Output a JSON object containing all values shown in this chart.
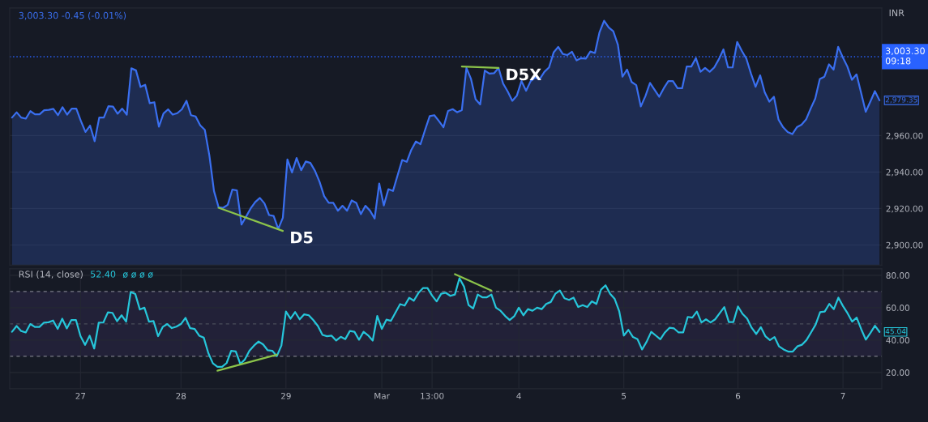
{
  "chart_data": [
    {
      "type": "area",
      "ylabel": "INR",
      "annotations": [
        "3,003.30 -0.45 (-0.01%)"
      ],
      "categories": [
        null,
        null,
        null,
        null,
        null,
        null,
        null,
        null,
        null,
        null,
        null,
        null,
        null,
        null,
        null,
        null,
        null,
        null,
        null,
        null,
        null,
        null,
        null,
        null,
        null,
        null,
        null,
        null,
        null,
        null,
        null,
        null,
        null,
        null,
        null,
        null,
        null,
        null,
        null,
        null,
        null,
        null,
        null,
        null,
        null,
        null,
        null,
        null,
        null,
        null,
        null,
        null,
        null,
        null,
        null,
        null,
        null,
        null,
        null,
        null,
        null,
        null,
        null,
        null,
        null,
        null,
        null,
        null,
        null,
        null,
        null,
        null,
        null,
        null,
        null,
        null,
        null,
        null,
        null,
        null,
        null,
        null,
        null,
        null,
        null,
        null,
        null,
        null,
        null,
        null,
        null,
        null,
        null,
        null,
        null,
        null,
        null,
        null,
        null,
        null,
        null,
        null,
        null,
        null,
        null,
        null,
        null,
        null,
        null,
        null,
        null,
        null,
        null,
        null,
        null,
        null,
        null,
        null,
        null,
        null,
        null,
        null,
        null,
        null,
        null,
        null,
        null,
        null,
        null,
        null,
        null,
        null,
        null,
        null,
        null,
        null,
        null,
        null,
        null,
        null,
        null,
        null,
        null,
        null,
        null,
        null,
        null,
        null,
        null,
        null,
        null,
        null,
        null,
        null,
        null,
        null,
        null,
        null,
        null,
        null,
        null,
        null,
        null,
        null,
        null,
        null,
        null,
        null,
        null,
        null,
        null,
        null,
        null,
        null,
        null,
        null,
        null,
        null,
        null,
        null,
        null,
        null,
        null,
        null,
        null,
        null,
        null,
        null,
        null,
        null
      ],
      "series": [
        {
          "color": "#3a6ff0",
          "values": [
            2969.9,
            2972.8,
            2969.9,
            2969.3,
            2973.4,
            2971.7,
            2971.7,
            2973.9,
            2974.1,
            2974.7,
            2971.2,
            2975.6,
            2971.5,
            2974.8,
            2974.8,
            2968.0,
            2962.0,
            2965.5,
            2956.9,
            2969.9,
            2969.9,
            2976.1,
            2975.9,
            2972.0,
            2974.8,
            2971.5,
            2996.9,
            2995.8,
            2986.7,
            2987.9,
            2977.8,
            2978.3,
            2964.9,
            2972.1,
            2974.4,
            2971.5,
            2972.3,
            2974.4,
            2979.1,
            2971.2,
            2970.5,
            2965.6,
            2963.2,
            2949.0,
            2929.6,
            2920.7,
            2920.4,
            2922.0,
            2930.4,
            2929.9,
            2911.2,
            2915.6,
            2920.1,
            2923.6,
            2925.8,
            2922.8,
            2916.4,
            2915.9,
            2908.8,
            2914.9,
            2946.9,
            2939.8,
            2947.7,
            2941.0,
            2945.8,
            2945.0,
            2940.7,
            2934.7,
            2926.8,
            2923.1,
            2923.1,
            2918.8,
            2921.5,
            2918.8,
            2924.4,
            2923.1,
            2916.9,
            2921.5,
            2918.8,
            2914.5,
            2933.7,
            2921.7,
            2930.6,
            2929.6,
            2938.2,
            2946.6,
            2945.6,
            2952.2,
            2956.8,
            2955.3,
            2963.2,
            2970.7,
            2971.2,
            2968.0,
            2964.6,
            2973.5,
            2974.5,
            2972.8,
            2974.0,
            2997.1,
            2991.1,
            2980.0,
            2977.1,
            2995.7,
            2994.0,
            2994.2,
            2997.1,
            2988.5,
            2984.2,
            2979.1,
            2982.0,
            2989.9,
            2984.6,
            2989.9,
            2991.9,
            2991.1,
            2995.0,
            2997.4,
            3005.6,
            3008.7,
            3004.8,
            3004.2,
            3006.0,
            3001.3,
            3002.5,
            3002.2,
            3006.1,
            3005.3,
            3016.7,
            3023.0,
            3019.3,
            3017.2,
            3009.9,
            2992.3,
            2996.2,
            2989.4,
            2987.7,
            2976.0,
            2981.7,
            2988.9,
            2985.1,
            2981.3,
            2986.0,
            2989.9,
            2989.9,
            2986.0,
            2986.0,
            2997.9,
            2997.9,
            3002.5,
            2995.0,
            2997.1,
            2995.0,
            2997.4,
            3001.9,
            3007.3,
            2997.4,
            2997.4,
            3011.4,
            3006.5,
            3002.2,
            2994.0,
            2986.8,
            2993.1,
            2983.7,
            2978.6,
            2981.3,
            2968.8,
            2964.6,
            2962.0,
            2960.8,
            2964.6,
            2966.0,
            2968.8,
            2974.8,
            2980.3,
            2991.1,
            2992.3,
            2999.1,
            2996.2,
            3008.7,
            3003.0,
            2997.9,
            2990.6,
            2993.6,
            2983.4,
            2973.1,
            2978.6,
            2984.4,
            2979.35
          ],
          "value_labels": [
            null,
            null,
            null,
            null,
            null,
            null,
            null,
            null,
            null,
            null,
            null,
            null,
            null,
            null,
            null,
            null,
            null,
            null,
            null,
            null,
            null,
            null,
            null,
            null,
            null,
            null,
            null,
            null,
            null,
            null,
            null,
            null,
            null,
            null,
            null,
            null,
            null,
            null,
            null,
            null,
            null,
            null,
            null,
            null,
            null,
            null,
            null,
            null,
            null,
            null,
            null,
            null,
            null,
            null,
            null,
            null,
            null,
            null,
            null,
            null,
            null,
            null,
            null,
            null,
            null,
            null,
            null,
            null,
            null,
            null,
            null,
            null,
            null,
            null,
            null,
            null,
            null,
            null,
            null,
            null,
            null,
            null,
            null,
            null,
            null,
            null,
            null,
            null,
            null,
            null,
            null,
            null,
            null,
            null,
            null,
            null,
            null,
            null,
            null,
            null,
            null,
            null,
            null,
            null,
            null,
            null,
            null,
            null,
            null,
            null,
            null,
            null,
            null,
            null,
            null,
            null,
            null,
            null,
            null,
            null,
            null,
            null,
            null,
            null,
            null,
            null,
            null,
            null,
            null,
            null,
            null,
            null,
            null,
            null,
            null,
            null,
            null,
            null,
            null,
            null,
            null,
            null,
            null,
            null,
            null,
            null,
            null,
            null,
            null,
            null,
            null,
            null,
            null,
            null,
            null,
            null,
            null,
            null,
            null,
            null,
            null,
            null,
            null,
            null,
            null,
            null,
            null,
            null,
            null,
            null,
            null,
            null,
            null,
            null,
            null,
            null,
            null,
            null,
            null,
            null,
            null,
            null,
            null,
            null,
            null,
            null,
            null,
            null,
            null,
            "2,979.35"
          ]
        },
        {
          "type": "line",
          "name": "D5",
          "color": "#8bc34a",
          "values": [
            null,
            null,
            null,
            null,
            null,
            null,
            null,
            null,
            null,
            null,
            null,
            null,
            null,
            null,
            null,
            null,
            null,
            null,
            null,
            null,
            null,
            null,
            null,
            null,
            null,
            null,
            null,
            null,
            null,
            null,
            null,
            null,
            null,
            null,
            null,
            null,
            null,
            null,
            null,
            null,
            null,
            null,
            null,
            null,
            null,
            2920.4,
            null,
            null,
            null,
            null,
            null,
            null,
            null,
            null,
            null,
            null,
            null,
            null,
            null,
            2907.7,
            null,
            null,
            null,
            null,
            null,
            null,
            null,
            null,
            null,
            null,
            null,
            null,
            null,
            null,
            null,
            null,
            null,
            null,
            null,
            null,
            null,
            null,
            null,
            null,
            null,
            null,
            null,
            null,
            null,
            null,
            null,
            null,
            null,
            null,
            null,
            null,
            null,
            null,
            null,
            null,
            null,
            null,
            null,
            null,
            null,
            null,
            null,
            null,
            null,
            null,
            null,
            null,
            null,
            null,
            null,
            null,
            null,
            null,
            null,
            null,
            null,
            null,
            null,
            null,
            null,
            null,
            null,
            null,
            null,
            null,
            null,
            null,
            null,
            null,
            null,
            null,
            null,
            null,
            null,
            null,
            null,
            null,
            null,
            null,
            null,
            null,
            null,
            null,
            null,
            null,
            null,
            null,
            null,
            null,
            null,
            null,
            null,
            null,
            null,
            null,
            null,
            null,
            null,
            null,
            null,
            null,
            null,
            null,
            null,
            null,
            null,
            null,
            null,
            null,
            null,
            null,
            null,
            null,
            null,
            null,
            null,
            null,
            null,
            null,
            null,
            null,
            null,
            null,
            null,
            null
          ]
        },
        {
          "type": "line",
          "name": "D5X",
          "color": "#8bc34a",
          "values": [
            null,
            null,
            null,
            null,
            null,
            null,
            null,
            null,
            null,
            null,
            null,
            null,
            null,
            null,
            null,
            null,
            null,
            null,
            null,
            null,
            null,
            null,
            null,
            null,
            null,
            null,
            null,
            null,
            null,
            null,
            null,
            null,
            null,
            null,
            null,
            null,
            null,
            null,
            null,
            null,
            null,
            null,
            null,
            null,
            null,
            null,
            null,
            null,
            null,
            null,
            null,
            null,
            null,
            null,
            null,
            null,
            null,
            null,
            null,
            null,
            null,
            null,
            null,
            null,
            null,
            null,
            null,
            null,
            null,
            null,
            null,
            null,
            null,
            null,
            null,
            null,
            null,
            null,
            null,
            null,
            null,
            null,
            null,
            null,
            null,
            null,
            null,
            null,
            null,
            null,
            null,
            null,
            null,
            null,
            null,
            null,
            null,
            null,
            2997.9,
            null,
            null,
            null,
            null,
            null,
            null,
            null,
            2997.1,
            null,
            null,
            null,
            null,
            null,
            null,
            null,
            null,
            null,
            null,
            null,
            null,
            null,
            null,
            null,
            null,
            null,
            null,
            null,
            null,
            null,
            null,
            null,
            null,
            null,
            null,
            null,
            null,
            null,
            null,
            null,
            null,
            null,
            null,
            null,
            null,
            null,
            null,
            null,
            null,
            null,
            null,
            null,
            null,
            null,
            null,
            null,
            null,
            null,
            null,
            null,
            null,
            null,
            null,
            null,
            null,
            null,
            null,
            null,
            null,
            null,
            null,
            null,
            null,
            null,
            null,
            null,
            null,
            null,
            null,
            null,
            null,
            null,
            null,
            null,
            null,
            null,
            null,
            null,
            null,
            null,
            null,
            null
          ]
        }
      ],
      "ref_lines": [
        {
          "axis": "y",
          "value": 3003.3,
          "label": "3,003.30\n09:18",
          "color": "#2962ff",
          "line_style": "dotted"
        }
      ],
      "ylim": [
        2889,
        3030
      ],
      "yticks": [
        {
          "value": 2900,
          "label": "2,900.00"
        },
        {
          "value": 2920,
          "label": "2,920.00"
        },
        {
          "value": 2940,
          "label": "2,940.00"
        },
        {
          "value": 2960,
          "label": "2,960.00"
        }
      ],
      "tick_labels": "y",
      "grid": "y",
      "line_style": "solid"
    },
    {
      "type": "line",
      "title": "RSI (14, close)",
      "annotations": [
        "52.40",
        "ø ø ø ø"
      ],
      "categories": [
        null,
        null,
        null,
        null,
        null,
        null,
        null,
        null,
        null,
        null,
        null,
        null,
        null,
        null,
        null,
        "27",
        null,
        null,
        null,
        null,
        null,
        null,
        null,
        null,
        null,
        null,
        null,
        null,
        null,
        null,
        null,
        null,
        null,
        null,
        null,
        null,
        null,
        "28",
        null,
        null,
        null,
        null,
        null,
        null,
        null,
        null,
        null,
        null,
        null,
        null,
        null,
        null,
        null,
        null,
        null,
        null,
        null,
        null,
        null,
        null,
        "29",
        null,
        null,
        null,
        null,
        null,
        null,
        null,
        null,
        null,
        null,
        null,
        null,
        null,
        null,
        null,
        null,
        null,
        null,
        null,
        null,
        "Mar",
        null,
        null,
        null,
        null,
        null,
        null,
        null,
        null,
        null,
        null,
        "13:00",
        null,
        null,
        null,
        null,
        null,
        null,
        null,
        null,
        null,
        null,
        null,
        null,
        null,
        null,
        null,
        null,
        null,
        null,
        "4",
        null,
        null,
        null,
        null,
        null,
        null,
        null,
        null,
        null,
        null,
        null,
        null,
        null,
        null,
        null,
        null,
        null,
        null,
        null,
        null,
        null,
        null,
        "5",
        null,
        null,
        null,
        null,
        null,
        null,
        null,
        null,
        null,
        null,
        null,
        null,
        null,
        null,
        null,
        null,
        null,
        null,
        null,
        null,
        null,
        null,
        null,
        null,
        "6",
        null,
        null,
        null,
        null,
        null,
        null,
        null,
        null,
        null,
        null,
        null,
        null,
        null,
        null,
        null,
        null,
        null,
        null,
        null,
        null,
        null,
        null,
        "7",
        null,
        null,
        null,
        null,
        null,
        null,
        null,
        null
      ],
      "series": [
        {
          "color": "#26c6da",
          "values": [
            45.1,
            48.7,
            45.6,
            44.7,
            49.9,
            48.1,
            48.1,
            50.8,
            51.0,
            52.1,
            46.9,
            53.2,
            47.2,
            52.4,
            52.4,
            42.4,
            37.0,
            42.7,
            34.8,
            50.8,
            50.8,
            57.1,
            56.8,
            51.7,
            55.3,
            51.4,
            69.7,
            68.4,
            58.9,
            60.0,
            51.4,
            51.7,
            42.4,
            48.1,
            49.9,
            47.4,
            48.3,
            49.9,
            53.7,
            47.4,
            46.9,
            42.7,
            41.5,
            31.9,
            25.6,
            23.5,
            23.5,
            25.8,
            33.4,
            33.0,
            25.3,
            28.0,
            33.4,
            36.6,
            39.1,
            37.3,
            33.7,
            33.4,
            30.1,
            36.6,
            57.6,
            53.2,
            57.3,
            52.8,
            55.9,
            55.3,
            52.3,
            48.7,
            43.2,
            42.4,
            42.7,
            39.7,
            42.0,
            40.6,
            45.6,
            45.1,
            40.2,
            45.1,
            42.9,
            39.7,
            54.9,
            46.9,
            52.6,
            51.9,
            57.1,
            62.2,
            61.3,
            66.1,
            64.3,
            69.0,
            72.1,
            72.1,
            67.5,
            63.9,
            68.6,
            69.2,
            67.3,
            68.1,
            78.2,
            73.0,
            61.6,
            59.5,
            68.1,
            66.4,
            66.4,
            68.1,
            60.0,
            58.1,
            54.9,
            52.4,
            54.7,
            60.0,
            55.3,
            59.1,
            58.1,
            60.0,
            59.1,
            62.3,
            63.5,
            68.6,
            70.6,
            65.8,
            64.8,
            66.2,
            60.4,
            61.6,
            60.4,
            63.9,
            62.3,
            71.1,
            73.8,
            68.6,
            65.4,
            57.7,
            42.8,
            46.3,
            41.9,
            40.5,
            34.2,
            39.0,
            45.1,
            42.8,
            40.5,
            44.7,
            47.6,
            47.2,
            44.7,
            44.7,
            54.3,
            53.9,
            57.6,
            50.9,
            52.8,
            50.9,
            52.8,
            56.6,
            60.4,
            51.1,
            51.1,
            60.8,
            56.2,
            53.3,
            47.6,
            43.8,
            48.0,
            42.4,
            40.0,
            41.9,
            36.1,
            34.2,
            32.9,
            32.9,
            36.1,
            37.1,
            40.0,
            44.7,
            49.5,
            57.2,
            57.6,
            62.3,
            59.1,
            66.2,
            61.0,
            56.6,
            51.4,
            53.9,
            46.7,
            40.3,
            44.4,
            48.9,
            45.04
          ],
          "value_labels": [
            null,
            null,
            null,
            null,
            null,
            null,
            null,
            null,
            null,
            null,
            null,
            null,
            null,
            null,
            null,
            null,
            null,
            null,
            null,
            null,
            null,
            null,
            null,
            null,
            null,
            null,
            null,
            null,
            null,
            null,
            null,
            null,
            null,
            null,
            null,
            null,
            null,
            null,
            null,
            null,
            null,
            null,
            null,
            null,
            null,
            null,
            null,
            null,
            null,
            null,
            null,
            null,
            null,
            null,
            null,
            null,
            null,
            null,
            null,
            null,
            null,
            null,
            null,
            null,
            null,
            null,
            null,
            null,
            null,
            null,
            null,
            null,
            null,
            null,
            null,
            null,
            null,
            null,
            null,
            null,
            null,
            null,
            null,
            null,
            null,
            null,
            null,
            null,
            null,
            null,
            null,
            null,
            null,
            null,
            null,
            null,
            null,
            null,
            null,
            null,
            null,
            null,
            null,
            null,
            null,
            null,
            null,
            null,
            null,
            null,
            null,
            null,
            null,
            null,
            null,
            null,
            null,
            null,
            null,
            null,
            null,
            null,
            null,
            null,
            null,
            null,
            null,
            null,
            null,
            null,
            null,
            null,
            null,
            null,
            null,
            null,
            null,
            null,
            null,
            null,
            null,
            null,
            null,
            null,
            null,
            null,
            null,
            null,
            null,
            null,
            null,
            null,
            null,
            null,
            null,
            null,
            null,
            null,
            null,
            null,
            null,
            null,
            null,
            null,
            null,
            null,
            null,
            null,
            null,
            null,
            null,
            null,
            null,
            null,
            null,
            null,
            null,
            null,
            null,
            null,
            null,
            null,
            null,
            null,
            null,
            null,
            null,
            null,
            null,
            null,
            "45.04"
          ]
        },
        {
          "type": "line",
          "color": "#8bc34a",
          "values": [
            null,
            null,
            null,
            null,
            null,
            null,
            null,
            null,
            null,
            null,
            null,
            null,
            null,
            null,
            null,
            null,
            null,
            null,
            null,
            null,
            null,
            null,
            null,
            null,
            null,
            null,
            null,
            null,
            null,
            null,
            null,
            null,
            null,
            null,
            null,
            null,
            null,
            null,
            null,
            null,
            null,
            null,
            null,
            null,
            null,
            21.1,
            null,
            null,
            null,
            null,
            null,
            null,
            null,
            null,
            null,
            null,
            null,
            null,
            31.0,
            null,
            null,
            null,
            null,
            null,
            null,
            null,
            null,
            null,
            null,
            null,
            null,
            null,
            null,
            null,
            null,
            null,
            null,
            null,
            null,
            null,
            null,
            null,
            null,
            null,
            null,
            null,
            null,
            null,
            null,
            null,
            null,
            null,
            null,
            null,
            null,
            null,
            null,
            null,
            null,
            null,
            null,
            null,
            null,
            null,
            null,
            null,
            null,
            null,
            null,
            null,
            null,
            null,
            null,
            null,
            null,
            null,
            null,
            null,
            null,
            null,
            null,
            null,
            null,
            null,
            null,
            null,
            null,
            null,
            null,
            null,
            null,
            null,
            null,
            null,
            null,
            null,
            null,
            null,
            null,
            null,
            null,
            null,
            null,
            null,
            null,
            null,
            null,
            null,
            null,
            null,
            null,
            null,
            null,
            null,
            null,
            null,
            null,
            null,
            null,
            null,
            null,
            null,
            null,
            null,
            null,
            null,
            null,
            null,
            null,
            null,
            null,
            null,
            null,
            null,
            null,
            null,
            null,
            null,
            null,
            null,
            null,
            null,
            null,
            null,
            null,
            null,
            null,
            null,
            null,
            null,
            null
          ]
        },
        {
          "type": "line",
          "color": "#8bc34a",
          "values": [
            null,
            null,
            null,
            null,
            null,
            null,
            null,
            null,
            null,
            null,
            null,
            null,
            null,
            null,
            null,
            null,
            null,
            null,
            null,
            null,
            null,
            null,
            null,
            null,
            null,
            null,
            null,
            null,
            null,
            null,
            null,
            null,
            null,
            null,
            null,
            null,
            null,
            null,
            null,
            null,
            null,
            null,
            null,
            null,
            null,
            null,
            null,
            null,
            null,
            null,
            null,
            null,
            null,
            null,
            null,
            null,
            null,
            null,
            null,
            null,
            null,
            null,
            null,
            null,
            null,
            null,
            null,
            null,
            null,
            null,
            null,
            null,
            null,
            null,
            null,
            null,
            null,
            null,
            null,
            null,
            null,
            null,
            null,
            null,
            null,
            null,
            null,
            null,
            null,
            null,
            null,
            null,
            null,
            null,
            null,
            null,
            null,
            80.7,
            null,
            null,
            null,
            null,
            null,
            null,
            null,
            70.6,
            null,
            null,
            null,
            null,
            null,
            null,
            null,
            null,
            null,
            null,
            null,
            null,
            null,
            null,
            null,
            null,
            null,
            null,
            null,
            null,
            null,
            null,
            null,
            null,
            null,
            null,
            null,
            null,
            null,
            null,
            null,
            null,
            null,
            null,
            null,
            null,
            null,
            null,
            null,
            null,
            null,
            null,
            null,
            null,
            null,
            null,
            null,
            null,
            null,
            null,
            null,
            null,
            null,
            null,
            null,
            null,
            null,
            null,
            null,
            null,
            null,
            null,
            null,
            null,
            null,
            null,
            null,
            null,
            null,
            null,
            null,
            null,
            null,
            null,
            null,
            null,
            null,
            null,
            null,
            null,
            null,
            null,
            null,
            null,
            null
          ]
        }
      ],
      "ref_lines": [
        {
          "axis": "y",
          "value": 70,
          "color": "#787b86",
          "line_style": "dashed"
        },
        {
          "axis": "y",
          "value": 50,
          "color": "#4a4e5a",
          "line_style": "dashed"
        },
        {
          "axis": "y",
          "value": 30,
          "color": "#787b86",
          "line_style": "dashed"
        }
      ],
      "bands": [
        {
          "axis": "y",
          "from": 30,
          "to": 70,
          "color": "#7e57c2"
        }
      ],
      "ylim": [
        10,
        84
      ],
      "yticks": [
        {
          "value": 20,
          "label": "20.00"
        },
        {
          "value": 40,
          "label": "40.00"
        },
        {
          "value": 60,
          "label": "60.00"
        },
        {
          "value": 80,
          "label": "80.00"
        }
      ],
      "grid": true,
      "line_style": "solid"
    }
  ]
}
